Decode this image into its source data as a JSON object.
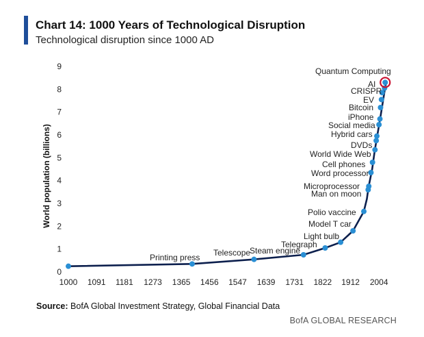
{
  "header": {
    "title": "Chart 14: 1000 Years of Technological Disruption",
    "subtitle": "Technological disruption since 1000 AD",
    "accent_color": "#1f4e9a"
  },
  "footer": {
    "source_label": "Source:",
    "source_text": "BofA Global Investment Strategy, Global Financial Data",
    "brand": "BofA GLOBAL RESEARCH"
  },
  "chart_data": {
    "type": "line",
    "title": "Chart 14: 1000 Years of Technological Disruption",
    "subtitle": "Technological disruption since 1000 AD",
    "xlabel": "",
    "ylabel": "World population (billions)",
    "xlim": [
      1000,
      2050
    ],
    "ylim": [
      0,
      9
    ],
    "x_ticks": [
      1000,
      1091,
      1181,
      1273,
      1365,
      1456,
      1547,
      1639,
      1731,
      1822,
      1912,
      2004
    ],
    "y_ticks": [
      0,
      1,
      2,
      3,
      4,
      5,
      6,
      7,
      8,
      9
    ],
    "grid": false,
    "line_color": "#0c1f4d",
    "marker_color": "#2a8fd4",
    "highlight_color": "#c8102e",
    "series": [
      {
        "values": [
          {
            "x": 1000,
            "y": 0.25
          },
          {
            "x": 1400,
            "y": 0.35
          },
          {
            "x": 1600,
            "y": 0.55
          },
          {
            "x": 1760,
            "y": 0.75
          },
          {
            "x": 1830,
            "y": 1.05
          },
          {
            "x": 1880,
            "y": 1.3
          },
          {
            "x": 1920,
            "y": 1.8
          },
          {
            "x": 1955,
            "y": 2.65
          },
          {
            "x": 1965,
            "y": 3.2
          },
          {
            "x": 1970,
            "y": 3.7
          },
          {
            "x": 1982,
            "y": 4.5
          },
          {
            "x": 1990,
            "y": 5.3
          },
          {
            "x": 2000,
            "y": 6.1
          },
          {
            "x": 2010,
            "y": 6.9
          },
          {
            "x": 2023,
            "y": 8.0
          },
          {
            "x": 2028,
            "y": 8.35
          }
        ]
      }
    ],
    "annotations": [
      {
        "label": "Printing press",
        "x": 1400,
        "y": 0.35
      },
      {
        "label": "Telescope",
        "x": 1600,
        "y": 0.55
      },
      {
        "label": "Steam engine",
        "x": 1760,
        "y": 0.75
      },
      {
        "label": "Telegraph",
        "x": 1830,
        "y": 1.05
      },
      {
        "label": "Light bulb",
        "x": 1880,
        "y": 1.3
      },
      {
        "label": "Model T car",
        "x": 1920,
        "y": 1.8
      },
      {
        "label": "Polio vaccine",
        "x": 1955,
        "y": 2.65
      },
      {
        "label": "Man on moon",
        "x": 1969,
        "y": 3.6
      },
      {
        "label": "Microprocessor",
        "x": 1971,
        "y": 3.75
      },
      {
        "label": "Word processor",
        "x": 1978,
        "y": 4.35
      },
      {
        "label": "Cell phones",
        "x": 1983,
        "y": 4.8
      },
      {
        "label": "World Wide Web",
        "x": 1991,
        "y": 5.35
      },
      {
        "label": "DVDs",
        "x": 1995,
        "y": 5.75
      },
      {
        "label": "Hybrid cars",
        "x": 1997,
        "y": 5.95
      },
      {
        "label": "Social media",
        "x": 2004,
        "y": 6.45
      },
      {
        "label": "iPhone",
        "x": 2007,
        "y": 6.7
      },
      {
        "label": "Bitcoin",
        "x": 2009,
        "y": 7.2
      },
      {
        "label": "EV",
        "x": 2012,
        "y": 7.55
      },
      {
        "label": "CRISPR",
        "x": 2014,
        "y": 7.85
      },
      {
        "label": "AI",
        "x": 2022,
        "y": 8.05
      },
      {
        "label": "Quantum Computing",
        "x": 2024,
        "y": 8.3,
        "highlight": true
      }
    ]
  }
}
